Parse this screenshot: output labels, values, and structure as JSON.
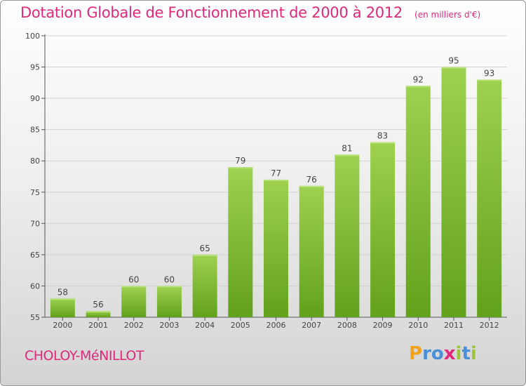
{
  "chart_data": {
    "type": "bar",
    "title": "Dotation Globale de Fonctionnement de 2000 à 2012",
    "unit": "(en milliers d'€)",
    "categories": [
      "2000",
      "2001",
      "2002",
      "2003",
      "2004",
      "2005",
      "2006",
      "2007",
      "2008",
      "2009",
      "2010",
      "2011",
      "2012"
    ],
    "values": [
      58,
      56,
      60,
      60,
      65,
      79,
      77,
      76,
      81,
      83,
      92,
      95,
      93
    ],
    "ylim": [
      55,
      100
    ],
    "yticks": [
      55,
      60,
      65,
      70,
      75,
      80,
      85,
      90,
      95,
      100
    ],
    "grid": true,
    "bar_color_top": "#9ed150",
    "bar_color_bottom": "#62a11b"
  },
  "commune": "CHOLOY-MéNILLOT",
  "logo": {
    "letters": [
      "P",
      "r",
      "o",
      "x",
      "i",
      "t",
      "i"
    ],
    "colors": [
      "#f2a31b",
      "#4a90d9",
      "#4a90d9",
      "#e0287b",
      "#9bc53d",
      "#4a90d9",
      "#9bc53d"
    ]
  }
}
